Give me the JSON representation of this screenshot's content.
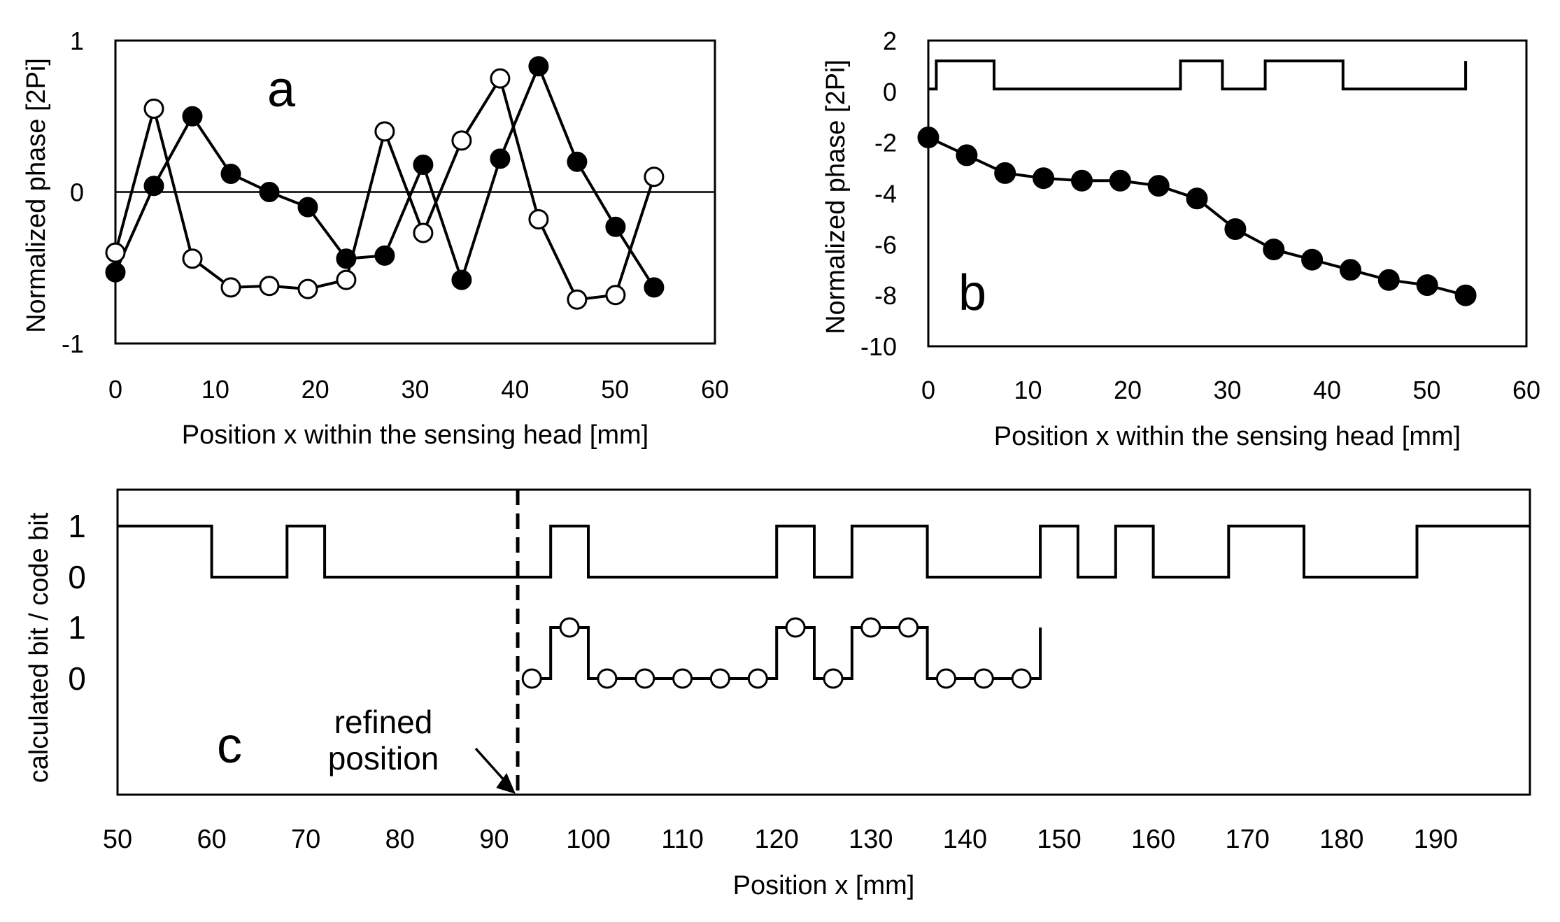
{
  "chart_data": [
    {
      "id": "a",
      "type": "line",
      "panel_label": "a",
      "xlabel": "Position x within the sensing head [mm]",
      "ylabel": "Normalized phase [2Pi]",
      "xlim": [
        0,
        60
      ],
      "ylim": [
        -1,
        1
      ],
      "xticks": [
        "0",
        "10",
        "20",
        "30",
        "40",
        "50",
        "60"
      ],
      "yticks": [
        "-1",
        "0",
        "1"
      ],
      "zero_line": true,
      "series": [
        {
          "name": "filled",
          "marker": "filled-circle",
          "x": [
            0,
            3.85,
            7.7,
            11.55,
            15.4,
            19.25,
            23.1,
            26.95,
            30.8,
            34.65,
            38.5,
            42.35,
            46.2,
            50.05,
            53.9
          ],
          "y": [
            -0.53,
            0.04,
            0.5,
            0.12,
            0.0,
            -0.1,
            -0.44,
            -0.42,
            0.18,
            -0.58,
            0.22,
            0.83,
            0.2,
            -0.23,
            -0.63
          ]
        },
        {
          "name": "open",
          "marker": "open-circle",
          "x": [
            0,
            3.85,
            7.7,
            11.55,
            15.4,
            19.25,
            23.1,
            26.95,
            30.8,
            34.65,
            38.5,
            42.35,
            46.2,
            50.05,
            53.9
          ],
          "y": [
            -0.4,
            0.55,
            -0.44,
            -0.63,
            -0.62,
            -0.64,
            -0.58,
            0.4,
            -0.27,
            0.34,
            0.75,
            -0.18,
            -0.71,
            -0.68,
            0.1
          ]
        }
      ]
    },
    {
      "id": "b",
      "type": "line",
      "panel_label": "b",
      "xlabel": "Position x within the sensing head [mm]",
      "ylabel": "Normalized phase [2Pi]",
      "xlim": [
        0,
        60
      ],
      "ylim": [
        -10,
        2
      ],
      "xticks": [
        "0",
        "10",
        "20",
        "30",
        "40",
        "50",
        "60"
      ],
      "yticks": [
        "2",
        "0",
        "-2",
        "-4",
        "-6",
        "-8",
        "-10"
      ],
      "series": [
        {
          "name": "phase",
          "marker": "filled-circle",
          "x": [
            0,
            3.85,
            7.7,
            11.55,
            15.4,
            19.25,
            23.1,
            26.95,
            30.8,
            34.65,
            38.5,
            42.35,
            46.2,
            50.05,
            53.9
          ],
          "y": [
            -1.8,
            -2.5,
            -3.2,
            -3.4,
            -3.5,
            -3.5,
            -3.7,
            -4.2,
            -5.4,
            -6.2,
            -6.6,
            -7.0,
            -7.4,
            -7.6,
            -8.0
          ]
        },
        {
          "name": "code",
          "marker": "none",
          "step_x": [
            0,
            0.8,
            0.8,
            6.6,
            6.6,
            25.3,
            25.3,
            29.5,
            29.5,
            33.8,
            33.8,
            41.6,
            41.6,
            53.9,
            53.9
          ],
          "step_y": [
            0.1,
            0.1,
            1.2,
            1.2,
            0.1,
            0.1,
            1.2,
            1.2,
            0.1,
            0.1,
            1.2,
            1.2,
            0.1,
            0.1,
            1.2
          ]
        }
      ]
    },
    {
      "id": "c",
      "type": "line",
      "panel_label": "c",
      "xlabel": "Position x [mm]",
      "ylabel": "calculated bit / code bit",
      "xlim": [
        50,
        200
      ],
      "xticks": [
        "50",
        "60",
        "70",
        "80",
        "90",
        "100",
        "110",
        "120",
        "130",
        "140",
        "150",
        "160",
        "170",
        "180",
        "190"
      ],
      "bit_labels": [
        "1",
        "0",
        "1",
        "0"
      ],
      "annotation": {
        "lines": [
          "refined",
          "position"
        ],
        "x": 92.5
      },
      "series": [
        {
          "name": "code bit",
          "marker": "none",
          "step_x": [
            50,
            60,
            60,
            68,
            68,
            72,
            72,
            96,
            96,
            100,
            100,
            120,
            120,
            124,
            124,
            128,
            128,
            136,
            136,
            148,
            148,
            152,
            152,
            156,
            156,
            160,
            160,
            168,
            168,
            176,
            176,
            188,
            188,
            200
          ],
          "step_y": [
            1,
            1,
            0,
            0,
            1,
            1,
            0,
            0,
            1,
            1,
            0,
            0,
            1,
            1,
            0,
            0,
            1,
            1,
            0,
            0,
            1,
            1,
            0,
            0,
            1,
            1,
            0,
            0,
            1,
            1,
            0,
            0,
            1,
            1
          ]
        },
        {
          "name": "calculated bit",
          "marker": "open-circle",
          "x": [
            94,
            98,
            102,
            106,
            110,
            114,
            118,
            122,
            126,
            130,
            134,
            138,
            142,
            146
          ],
          "y": [
            0,
            1,
            0,
            0,
            0,
            0,
            0,
            1,
            0,
            1,
            1,
            0,
            0,
            0
          ],
          "step_x": [
            93,
            96,
            96,
            100,
            100,
            120,
            120,
            124,
            124,
            128,
            128,
            136,
            136,
            148,
            148
          ],
          "step_y": [
            0,
            0,
            1,
            1,
            0,
            0,
            1,
            1,
            0,
            0,
            1,
            1,
            0,
            0,
            1
          ]
        }
      ]
    }
  ]
}
